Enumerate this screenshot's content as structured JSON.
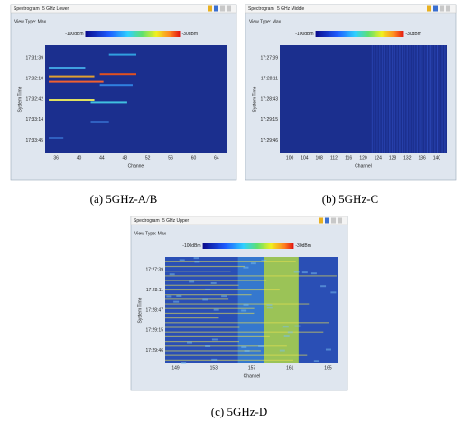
{
  "panels": [
    {
      "toolbar": {
        "view": "Spectrogram",
        "band": "5 GHz Lower"
      },
      "view_type": "View Type: Max",
      "legend": {
        "min": "-100dBm",
        "max": "-30dBm"
      },
      "y_axis_label": "System Time",
      "y_ticks": [
        "17:31:39",
        "17:32:10",
        "17:32:42",
        "17:33:14",
        "17:33:45"
      ],
      "x_axis_label": "Channel",
      "x_ticks": [
        "36",
        "40",
        "44",
        "48",
        "52",
        "56",
        "60",
        "64"
      ],
      "caption": "(a)  5GHz-A/B"
    },
    {
      "toolbar": {
        "view": "Spectrogram",
        "band": "5 GHz Middle"
      },
      "view_type": "View Type: Max",
      "legend": {
        "min": "-100dBm",
        "max": "-30dBm"
      },
      "y_axis_label": "System Time",
      "y_ticks": [
        "17:27:39",
        "17:28:11",
        "17:28:43",
        "17:29:15",
        "17:29:46"
      ],
      "x_axis_label": "Channel",
      "x_ticks": [
        "100",
        "104",
        "108",
        "112",
        "116",
        "120",
        "124",
        "128",
        "132",
        "136",
        "140"
      ],
      "caption": "(b)  5GHz-C"
    },
    {
      "toolbar": {
        "view": "Spectrogram",
        "band": "5 GHz Upper"
      },
      "view_type": "View Type: Max",
      "legend": {
        "min": "-100dBm",
        "max": "-30dBm"
      },
      "y_axis_label": "System Time",
      "y_ticks": [
        "17:27:39",
        "17:28:11",
        "17:28:47",
        "17:29:15",
        "17:29:46"
      ],
      "x_axis_label": "Channel",
      "x_ticks": [
        "149",
        "153",
        "157",
        "161",
        "165"
      ],
      "caption": "(c)  5GHz-D"
    }
  ]
}
